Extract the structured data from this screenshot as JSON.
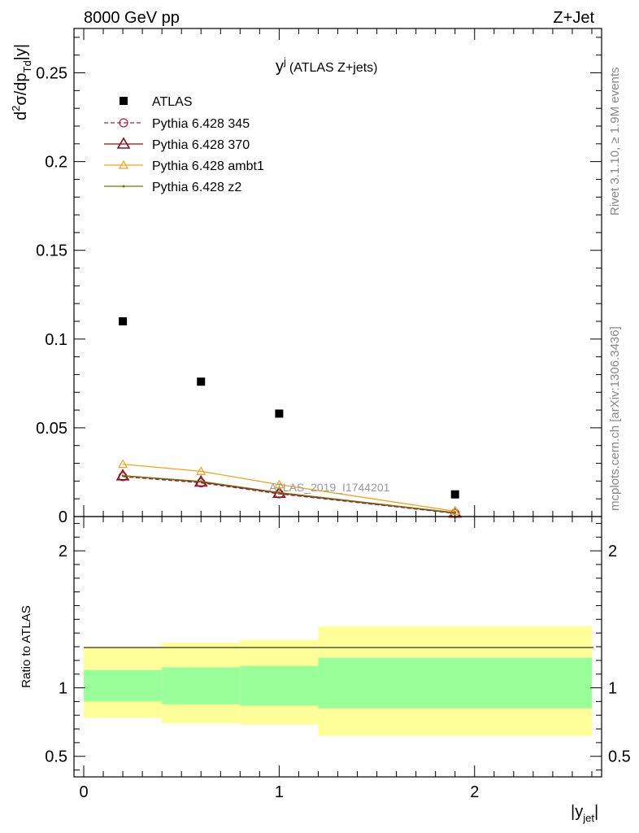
{
  "header": {
    "left": "8000 GeV pp",
    "right": "Z+Jet"
  },
  "side": {
    "rivet": "Rivet 3.1.10, ≥ 1.9M events",
    "mcplots": "mcplots.cern.ch [arXiv:1306.3436]"
  },
  "chart_data": {
    "type": "scatter",
    "title_main": "y",
    "title_sup": "j",
    "title_rest": "(ATLAS Z+jets)",
    "watermark": "ATLAS_2019_I1744201",
    "ylabel": {
      "main": "d",
      "sup": "2",
      "mid": "σ/dp",
      "sub": "Td",
      "end": "|y|"
    },
    "xlabel": {
      "main": "|y",
      "sub": "jet",
      "end": "|"
    },
    "xlim": [
      -0.05,
      2.65
    ],
    "ylim": [
      0,
      0.275
    ],
    "yticks": [
      "0",
      "0.05",
      "0.1",
      "0.15",
      "0.2",
      "0.25"
    ],
    "xticks": [
      "0",
      "1",
      "2"
    ],
    "legend_position": "top-left",
    "x": [
      0.2,
      0.6,
      1.0,
      1.9
    ],
    "series": [
      {
        "name": "ATLAS",
        "color": "#000000",
        "marker": "square",
        "line": "none",
        "values": [
          0.11,
          0.076,
          0.058,
          0.0125
        ]
      },
      {
        "name": "Pythia 6.428 345",
        "color": "#b22238",
        "marker": "circle",
        "line": "dashed",
        "values": [
          0.0225,
          0.019,
          0.0128,
          0.0018
        ]
      },
      {
        "name": "Pythia 6.428 370",
        "color": "#8b0d1a",
        "marker": "triangle",
        "line": "solid",
        "values": [
          0.023,
          0.0195,
          0.0132,
          0.002
        ]
      },
      {
        "name": "Pythia 6.428 ambt1",
        "color": "#f0a31b",
        "marker": "triangle-small",
        "line": "solid",
        "values": [
          0.0295,
          0.0255,
          0.018,
          0.003
        ]
      },
      {
        "name": "Pythia 6.428 z2",
        "color": "#6b7a10",
        "marker": "dot",
        "line": "solid",
        "values": [
          0.023,
          0.0198,
          0.0135,
          0.0022
        ]
      }
    ],
    "ratio": {
      "ylabel": "Ratio to ATLAS",
      "ylim": [
        0.35,
        2.25
      ],
      "yticks": [
        "0.5",
        "1",
        "2"
      ],
      "bins": [
        {
          "lo": 0.0,
          "hi": 0.4,
          "inner": [
            0.9,
            1.13
          ],
          "outer": [
            0.78,
            1.3
          ]
        },
        {
          "lo": 0.4,
          "hi": 0.8,
          "inner": [
            0.88,
            1.15
          ],
          "outer": [
            0.74,
            1.33
          ]
        },
        {
          "lo": 0.8,
          "hi": 1.2,
          "inner": [
            0.87,
            1.16
          ],
          "outer": [
            0.73,
            1.35
          ]
        },
        {
          "lo": 1.2,
          "hi": 2.6,
          "inner": [
            0.85,
            1.22
          ],
          "outer": [
            0.65,
            1.45
          ]
        }
      ],
      "inner_color": "#99ff99",
      "outer_color": "#ffff99"
    }
  }
}
